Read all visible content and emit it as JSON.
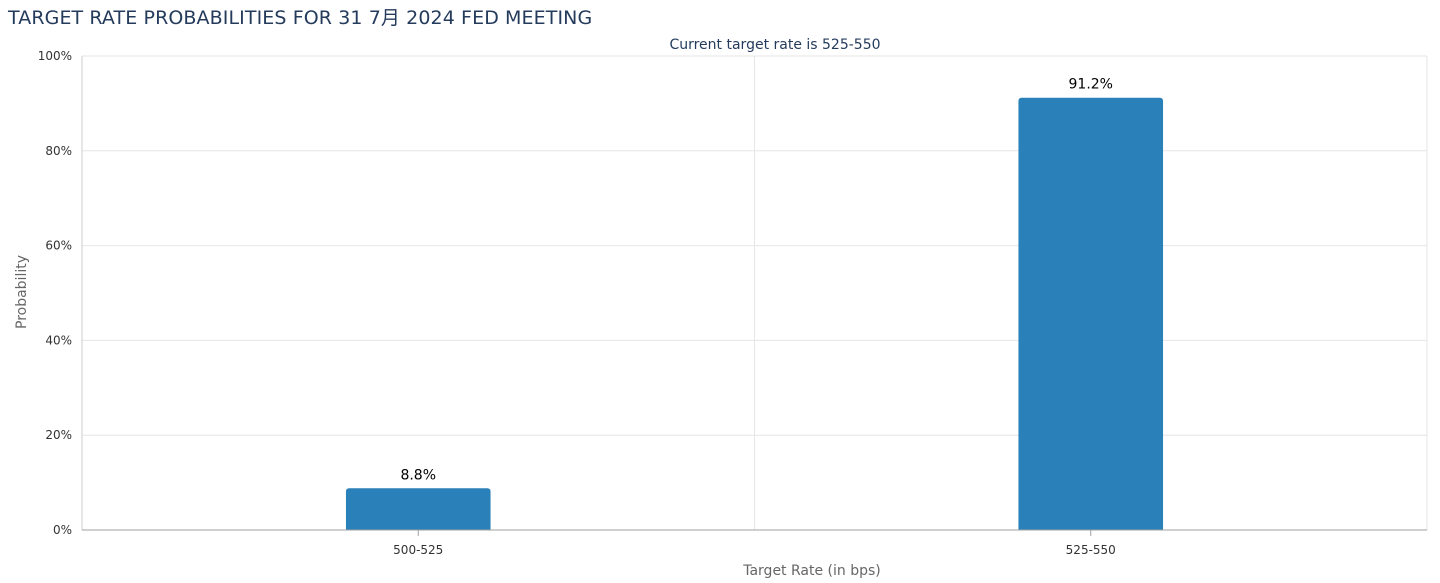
{
  "chart_data": {
    "type": "bar",
    "title": "TARGET RATE PROBABILITIES FOR 31 7月 2024 FED MEETING",
    "subtitle": "Current target rate is 525-550",
    "xlabel": "Target Rate (in bps)",
    "ylabel": "Probability",
    "categories": [
      "500-525",
      "525-550"
    ],
    "values": [
      8.8,
      91.2
    ],
    "data_labels": [
      "8.8%",
      "91.2%"
    ],
    "ylim": [
      0,
      100
    ],
    "yticks": [
      0,
      20,
      40,
      60,
      80,
      100
    ],
    "ytick_labels": [
      "0%",
      "20%",
      "40%",
      "60%",
      "80%",
      "100%"
    ],
    "bar_color": "#2a80b9",
    "grid": true,
    "legend": "none"
  }
}
